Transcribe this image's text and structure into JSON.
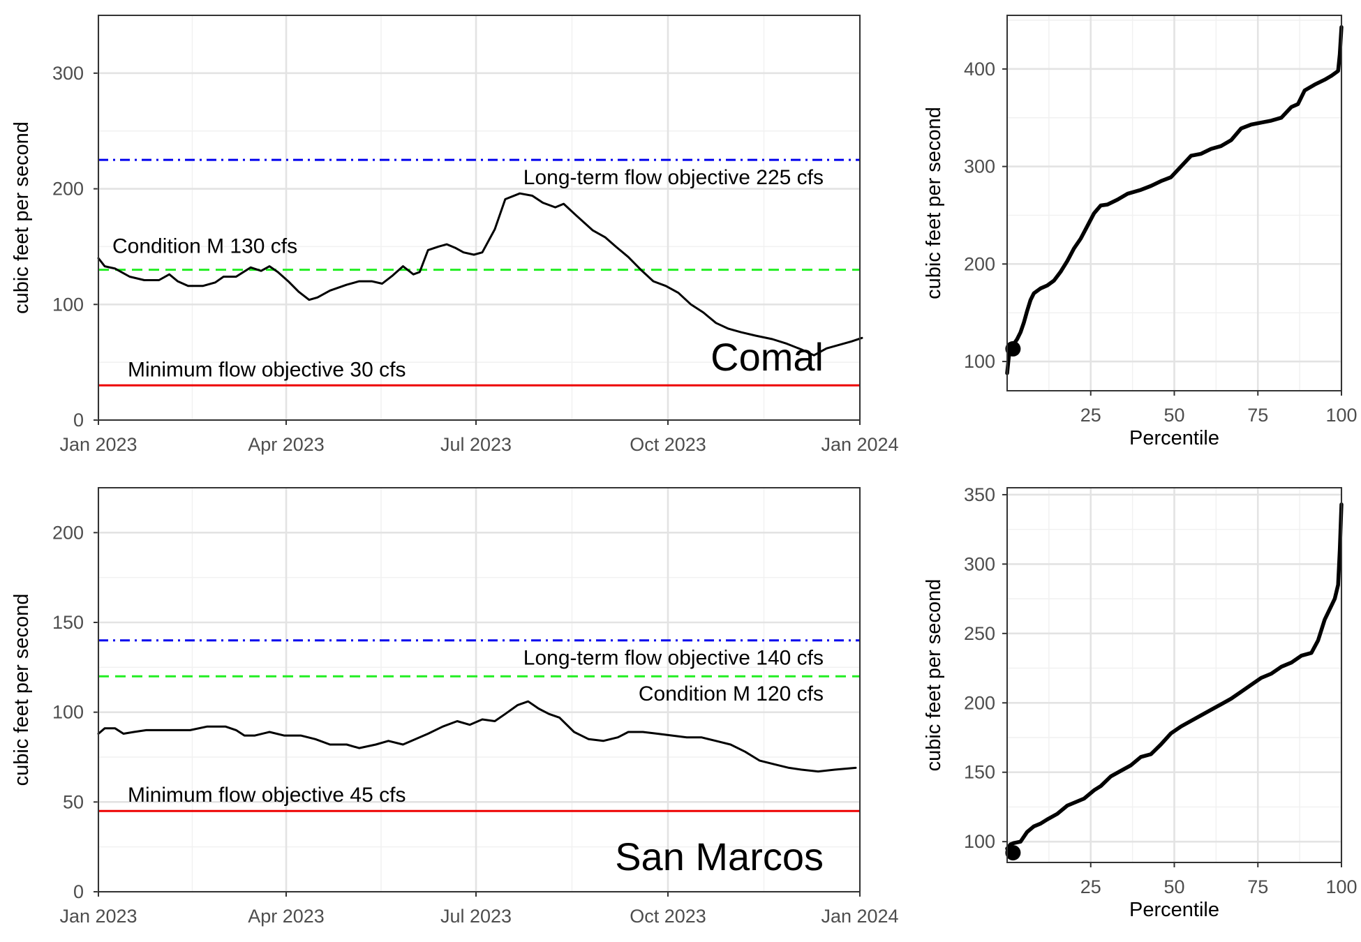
{
  "chart_data": [
    {
      "id": "comal-timeseries",
      "type": "line",
      "site_label": "Comal",
      "xlabel": "",
      "ylabel": "cubic feet per second",
      "x_tick_labels": [
        "Jan 2023",
        "Apr 2023",
        "Jul 2023",
        "Oct 2023",
        "Jan 2024"
      ],
      "x_tick_dates": [
        "2023-01-01",
        "2023-04-01",
        "2023-07-01",
        "2023-10-01",
        "2024-01-01"
      ],
      "xlim": [
        "2023-01-01",
        "2024-01-01"
      ],
      "ylim": [
        0,
        350
      ],
      "y_ticks": [
        0,
        100,
        200,
        300
      ],
      "grid": true,
      "reference_lines": [
        {
          "value": 225,
          "color": "#0000ee",
          "style": "dotdash",
          "label": "Long-term flow objective 225 cfs",
          "label_anchor": "end"
        },
        {
          "value": 130,
          "color": "#22ee22",
          "style": "dashed",
          "label": "Condition M 130 cfs",
          "label_anchor": "start"
        },
        {
          "value": 30,
          "color": "#ee0000",
          "style": "solid",
          "label": "Minimum flow objective 30 cfs",
          "label_anchor": "start"
        }
      ],
      "series": [
        {
          "color": "#000000",
          "points": [
            [
              "2023-01-01",
              140
            ],
            [
              "2023-01-04",
              133
            ],
            [
              "2023-01-09",
              131
            ],
            [
              "2023-01-16",
              124
            ],
            [
              "2023-01-23",
              121
            ],
            [
              "2023-01-30",
              121
            ],
            [
              "2023-02-04",
              126
            ],
            [
              "2023-02-08",
              120
            ],
            [
              "2023-02-13",
              116
            ],
            [
              "2023-02-20",
              116
            ],
            [
              "2023-02-26",
              119
            ],
            [
              "2023-03-02",
              124
            ],
            [
              "2023-03-08",
              124
            ],
            [
              "2023-03-15",
              132
            ],
            [
              "2023-03-20",
              129
            ],
            [
              "2023-03-24",
              133
            ],
            [
              "2023-03-28",
              128
            ],
            [
              "2023-04-02",
              120
            ],
            [
              "2023-04-07",
              111
            ],
            [
              "2023-04-12",
              104
            ],
            [
              "2023-04-16",
              106
            ],
            [
              "2023-04-22",
              112
            ],
            [
              "2023-04-30",
              117
            ],
            [
              "2023-05-06",
              120
            ],
            [
              "2023-05-12",
              120
            ],
            [
              "2023-05-17",
              118
            ],
            [
              "2023-05-22",
              125
            ],
            [
              "2023-05-27",
              133
            ],
            [
              "2023-06-01",
              126
            ],
            [
              "2023-06-04",
              128
            ],
            [
              "2023-06-08",
              147
            ],
            [
              "2023-06-13",
              150
            ],
            [
              "2023-06-17",
              152
            ],
            [
              "2023-06-21",
              149
            ],
            [
              "2023-06-25",
              145
            ],
            [
              "2023-06-30",
              143
            ],
            [
              "2023-07-04",
              145
            ],
            [
              "2023-07-10",
              165
            ],
            [
              "2023-07-15",
              191
            ],
            [
              "2023-07-22",
              196
            ],
            [
              "2023-07-28",
              194
            ],
            [
              "2023-08-02",
              188
            ],
            [
              "2023-08-08",
              184
            ],
            [
              "2023-08-12",
              187
            ],
            [
              "2023-08-18",
              177
            ],
            [
              "2023-08-26",
              164
            ],
            [
              "2023-09-01",
              158
            ],
            [
              "2023-09-06",
              150
            ],
            [
              "2023-09-12",
              141
            ],
            [
              "2023-09-18",
              130
            ],
            [
              "2023-09-24",
              120
            ],
            [
              "2023-09-30",
              116
            ],
            [
              "2023-10-06",
              110
            ],
            [
              "2023-10-12",
              100
            ],
            [
              "2023-10-18",
              93
            ],
            [
              "2023-10-24",
              84
            ],
            [
              "2023-10-30",
              79
            ],
            [
              "2023-11-05",
              76
            ],
            [
              "2023-11-12",
              73
            ],
            [
              "2023-11-20",
              70
            ],
            [
              "2023-11-27",
              66
            ],
            [
              "2023-12-04",
              61
            ],
            [
              "2023-12-10",
              56
            ],
            [
              "2023-12-16",
              62
            ],
            [
              "2023-12-22",
              65
            ],
            [
              "2023-12-28",
              68
            ],
            [
              "2024-01-02",
              71
            ]
          ]
        }
      ]
    },
    {
      "id": "comal-percentile",
      "type": "line",
      "xlabel": "Percentile",
      "ylabel": "cubic feet per second",
      "x_ticks": [
        25,
        50,
        75,
        100
      ],
      "xlim": [
        0,
        100
      ],
      "ylim": [
        70,
        455
      ],
      "y_ticks": [
        100,
        200,
        300,
        400
      ],
      "grid": true,
      "series": [
        {
          "color": "#000000",
          "x": [
            0,
            0.5,
            1,
            2,
            3,
            4,
            5,
            6,
            7,
            8,
            10,
            12,
            14,
            16,
            18,
            20,
            22,
            24,
            26,
            28,
            30,
            33,
            36,
            40,
            43,
            46,
            49,
            52,
            55,
            58,
            61,
            64,
            67,
            70,
            73,
            76,
            79,
            82,
            85,
            87,
            89,
            92,
            95,
            97,
            99,
            99.5,
            100
          ],
          "values": [
            88,
            105,
            114,
            118,
            123,
            130,
            140,
            152,
            163,
            170,
            175,
            178,
            183,
            192,
            203,
            216,
            226,
            239,
            252,
            260,
            261,
            266,
            272,
            276,
            280,
            285,
            289,
            300,
            311,
            313,
            318,
            321,
            327,
            339,
            343,
            345,
            347,
            350,
            361,
            364,
            378,
            384,
            389,
            393,
            398,
            415,
            443
          ]
        }
      ],
      "marker": {
        "x": 0.5,
        "y": 113
      }
    },
    {
      "id": "san-marcos-timeseries",
      "type": "line",
      "site_label": "San Marcos",
      "xlabel": "",
      "ylabel": "cubic feet per second",
      "x_tick_labels": [
        "Jan 2023",
        "Apr 2023",
        "Jul 2023",
        "Oct 2023",
        "Jan 2024"
      ],
      "x_tick_dates": [
        "2023-01-01",
        "2023-04-01",
        "2023-07-01",
        "2023-10-01",
        "2024-01-01"
      ],
      "xlim": [
        "2023-01-01",
        "2024-01-01"
      ],
      "ylim": [
        0,
        225
      ],
      "y_ticks": [
        0,
        50,
        100,
        150,
        200
      ],
      "grid": true,
      "reference_lines": [
        {
          "value": 140,
          "color": "#0000ee",
          "style": "dotdash",
          "label": "Long-term flow objective 140 cfs",
          "label_anchor": "end"
        },
        {
          "value": 120,
          "color": "#22ee22",
          "style": "dashed",
          "label": "Condition M 120 cfs",
          "label_anchor": "end"
        },
        {
          "value": 45,
          "color": "#ee0000",
          "style": "solid",
          "label": "Minimum flow objective 45 cfs",
          "label_anchor": "start"
        }
      ],
      "series": [
        {
          "color": "#000000",
          "points": [
            [
              "2023-01-01",
              88
            ],
            [
              "2023-01-04",
              91
            ],
            [
              "2023-01-09",
              91
            ],
            [
              "2023-01-13",
              88
            ],
            [
              "2023-01-18",
              89
            ],
            [
              "2023-01-24",
              90
            ],
            [
              "2023-02-05",
              90
            ],
            [
              "2023-02-14",
              90
            ],
            [
              "2023-02-22",
              92
            ],
            [
              "2023-03-03",
              92
            ],
            [
              "2023-03-08",
              90
            ],
            [
              "2023-03-12",
              87
            ],
            [
              "2023-03-17",
              87
            ],
            [
              "2023-03-24",
              89
            ],
            [
              "2023-03-31",
              87
            ],
            [
              "2023-04-08",
              87
            ],
            [
              "2023-04-15",
              85
            ],
            [
              "2023-04-22",
              82
            ],
            [
              "2023-04-30",
              82
            ],
            [
              "2023-05-06",
              80
            ],
            [
              "2023-05-14",
              82
            ],
            [
              "2023-05-20",
              84
            ],
            [
              "2023-05-27",
              82
            ],
            [
              "2023-06-02",
              85
            ],
            [
              "2023-06-08",
              88
            ],
            [
              "2023-06-15",
              92
            ],
            [
              "2023-06-22",
              95
            ],
            [
              "2023-06-28",
              93
            ],
            [
              "2023-07-04",
              96
            ],
            [
              "2023-07-10",
              95
            ],
            [
              "2023-07-15",
              99
            ],
            [
              "2023-07-21",
              104
            ],
            [
              "2023-07-26",
              106
            ],
            [
              "2023-07-31",
              102
            ],
            [
              "2023-08-05",
              99
            ],
            [
              "2023-08-10",
              97
            ],
            [
              "2023-08-17",
              89
            ],
            [
              "2023-08-24",
              85
            ],
            [
              "2023-08-31",
              84
            ],
            [
              "2023-09-07",
              86
            ],
            [
              "2023-09-12",
              89
            ],
            [
              "2023-09-19",
              89
            ],
            [
              "2023-09-26",
              88
            ],
            [
              "2023-10-03",
              87
            ],
            [
              "2023-10-10",
              86
            ],
            [
              "2023-10-17",
              86
            ],
            [
              "2023-10-24",
              84
            ],
            [
              "2023-10-31",
              82
            ],
            [
              "2023-11-07",
              78
            ],
            [
              "2023-11-14",
              73
            ],
            [
              "2023-11-21",
              71
            ],
            [
              "2023-11-28",
              69
            ],
            [
              "2023-12-04",
              68
            ],
            [
              "2023-12-12",
              67
            ],
            [
              "2023-12-20",
              68
            ],
            [
              "2023-12-30",
              69
            ]
          ]
        }
      ]
    },
    {
      "id": "san-marcos-percentile",
      "type": "line",
      "xlabel": "Percentile",
      "ylabel": "cubic feet per second",
      "x_ticks": [
        25,
        50,
        75,
        100
      ],
      "xlim": [
        0,
        100
      ],
      "ylim": [
        85,
        355
      ],
      "y_ticks": [
        100,
        150,
        200,
        250,
        300,
        350
      ],
      "grid": true,
      "series": [
        {
          "color": "#000000",
          "x": [
            0,
            1,
            2,
            4,
            6,
            8,
            10,
            12,
            15,
            18,
            20,
            23,
            26,
            28,
            31,
            34,
            37,
            40,
            43,
            46,
            49,
            52,
            55,
            58,
            61,
            64,
            67,
            70,
            73,
            76,
            79,
            82,
            85,
            88,
            91,
            93,
            95,
            97,
            98,
            99,
            99.5,
            100
          ],
          "values": [
            95,
            98,
            99,
            100,
            107,
            111,
            113,
            116,
            120,
            126,
            128,
            131,
            137,
            140,
            147,
            151,
            155,
            161,
            163,
            170,
            178,
            183,
            187,
            191,
            195,
            199,
            203,
            208,
            213,
            218,
            221,
            226,
            229,
            234,
            236,
            245,
            260,
            270,
            275,
            285,
            310,
            343
          ]
        }
      ],
      "marker": {
        "x": 0.5,
        "y": 92
      }
    }
  ]
}
